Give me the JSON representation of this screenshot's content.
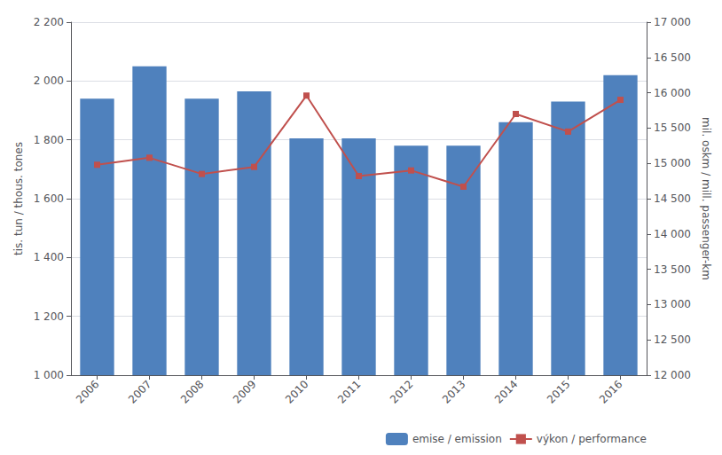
{
  "chart_data": {
    "type": "bar",
    "categories": [
      "2006",
      "2007",
      "2008",
      "2009",
      "2010",
      "2011",
      "2012",
      "2013",
      "2014",
      "2015",
      "2016"
    ],
    "series": [
      {
        "name": "emise / emission",
        "type": "bar",
        "color": "#4F81BD",
        "values": [
          1940,
          2050,
          1940,
          1965,
          1805,
          1805,
          1780,
          1780,
          1860,
          1930,
          2020
        ]
      },
      {
        "name": "výkon / performance",
        "type": "line",
        "axis": "y2",
        "color": "#C0504D",
        "marker": "square",
        "values": [
          14980,
          15080,
          14850,
          14950,
          15960,
          14820,
          14900,
          14670,
          15700,
          15450,
          15900
        ]
      }
    ],
    "ylabel": "tis. tun / thous. tones",
    "y2label": "mil. oskm / mill. passenger-km",
    "ylim": [
      1000,
      2200
    ],
    "yticks": [
      {
        "value": 1000,
        "label": "1 000"
      },
      {
        "value": 1200,
        "label": "1 200"
      },
      {
        "value": 1400,
        "label": "1 400"
      },
      {
        "value": 1600,
        "label": "1 600"
      },
      {
        "value": 1800,
        "label": "1 800"
      },
      {
        "value": 2000,
        "label": "2 000"
      },
      {
        "value": 2200,
        "label": "2 200"
      }
    ],
    "y2lim": [
      12000,
      17000
    ],
    "y2ticks": [
      {
        "value": 12000,
        "label": "12 000"
      },
      {
        "value": 12500,
        "label": "12 500"
      },
      {
        "value": 13000,
        "label": "13 000"
      },
      {
        "value": 13500,
        "label": "13 500"
      },
      {
        "value": 14000,
        "label": "14 000"
      },
      {
        "value": 14500,
        "label": "14 500"
      },
      {
        "value": 15000,
        "label": "15 000"
      },
      {
        "value": 15500,
        "label": "15 500"
      },
      {
        "value": 16000,
        "label": "16 000"
      },
      {
        "value": 16500,
        "label": "16 500"
      },
      {
        "value": 17000,
        "label": "17 000"
      }
    ],
    "grid": true,
    "legend": "lower right"
  }
}
